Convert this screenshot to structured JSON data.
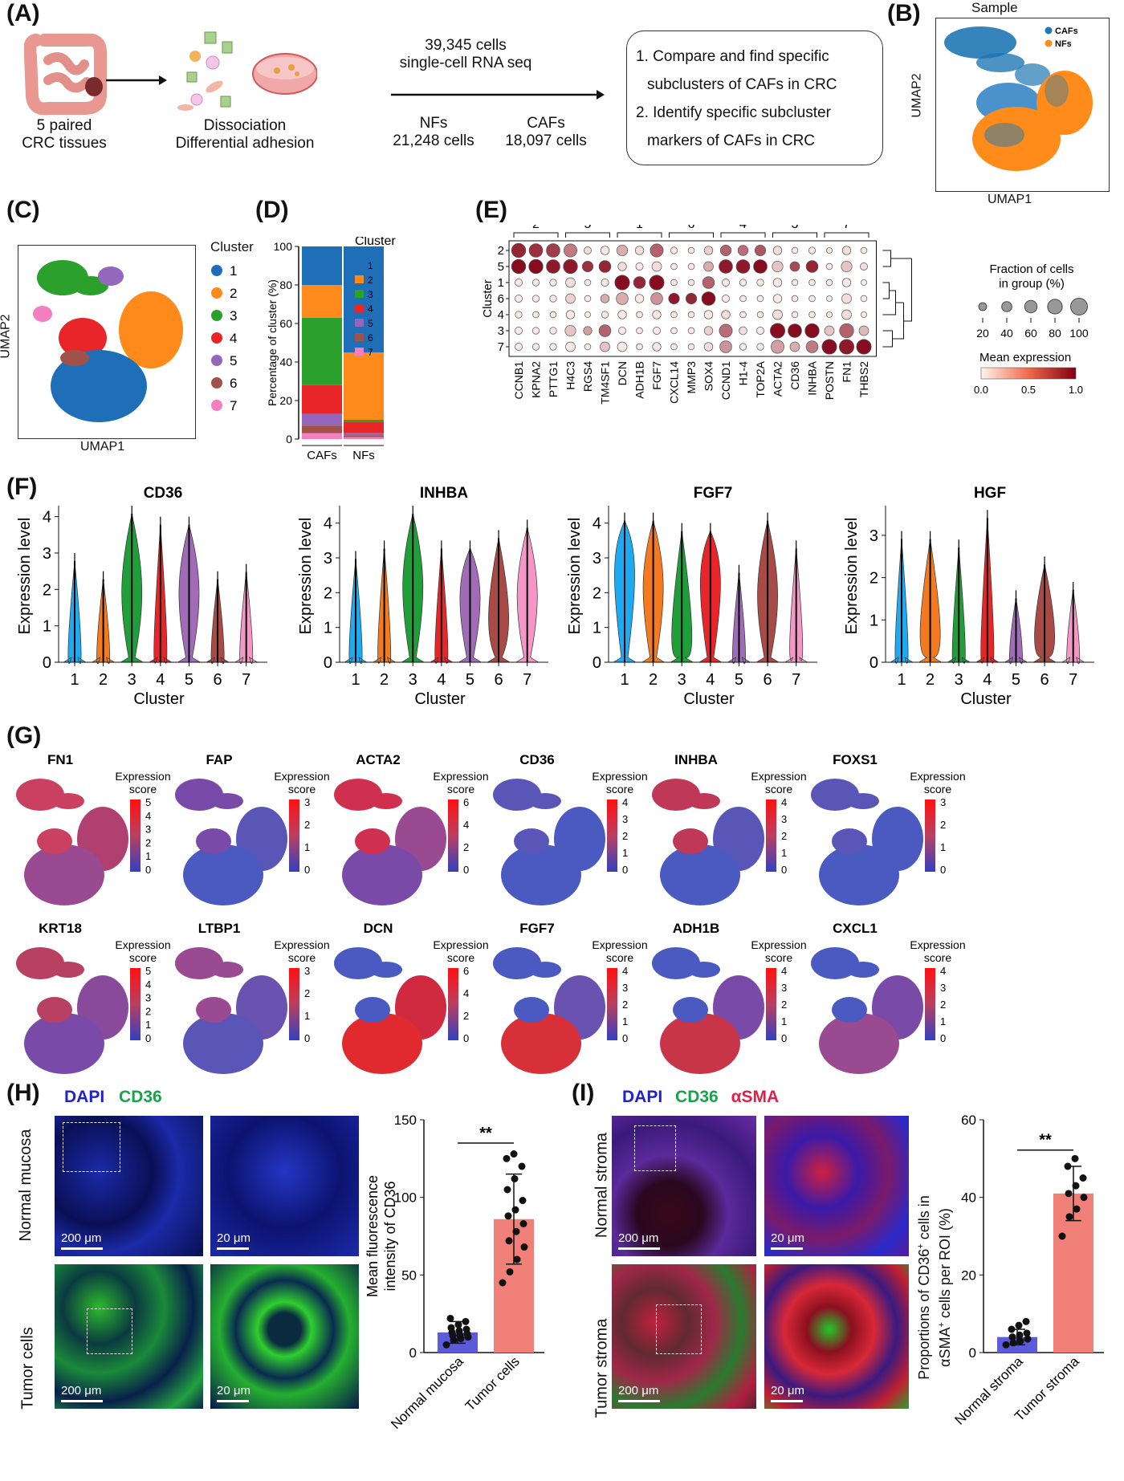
{
  "panels": {
    "A": "(A)",
    "B": "(B)",
    "C": "(C)",
    "D": "(D)",
    "E": "(E)",
    "F": "(F)",
    "G": "(G)",
    "H": "(H)",
    "I": "(I)"
  },
  "panelA": {
    "tissue_line1": "5 paired",
    "tissue_line2": "CRC tissues",
    "dissoc_line1": "Dissociation",
    "dissoc_line2": "Differential adhesion",
    "cells_line1": "39,345 cells",
    "cells_line2": "single-cell RNA seq",
    "nfs_line1": "NFs",
    "nfs_line2": "21,248 cells",
    "cafs_line1": "CAFs",
    "cafs_line2": "18,097 cells",
    "goal1_line1": "1. Compare and find specific",
    "goal1_line2": "subclusters of CAFs in CRC",
    "goal2_line1": "2. Identify specific subcluster",
    "goal2_line2": "markers of CAFs in CRC"
  },
  "panelB": {
    "title": "Sample",
    "xlabel": "UMAP1",
    "ylabel": "UMAP2",
    "legend": [
      {
        "label": "CAFs",
        "color": "#1f77b4"
      },
      {
        "label": "NFs",
        "color": "#ff8c1a"
      }
    ]
  },
  "panelC": {
    "xlabel": "UMAP1",
    "ylabel": "UMAP2",
    "legend_title": "Cluster",
    "clusters": [
      {
        "label": "1",
        "color": "#1f6fb8"
      },
      {
        "label": "2",
        "color": "#ff8a1c"
      },
      {
        "label": "3",
        "color": "#2ca02c"
      },
      {
        "label": "4",
        "color": "#e8262a"
      },
      {
        "label": "5",
        "color": "#9467bd"
      },
      {
        "label": "6",
        "color": "#a0524a"
      },
      {
        "label": "7",
        "color": "#f37fbf"
      }
    ]
  },
  "chart_data": [
    {
      "type": "bar",
      "id": "D",
      "stacked": true,
      "categories": [
        "CAFs",
        "NFs"
      ],
      "ylabel": "Percentage of cluster (%)",
      "ylim": [
        0,
        100
      ],
      "yticks": [
        "0",
        "20",
        "40",
        "60",
        "80",
        "100"
      ],
      "legend_title": "Cluster",
      "series": [
        {
          "name": "1",
          "color": "#1f6fb8",
          "values": [
            20,
            55
          ]
        },
        {
          "name": "2",
          "color": "#ff8a1c",
          "values": [
            17,
            35
          ]
        },
        {
          "name": "3",
          "color": "#2ca02c",
          "values": [
            35,
            1
          ]
        },
        {
          "name": "4",
          "color": "#e8262a",
          "values": [
            15,
            6
          ]
        },
        {
          "name": "5",
          "color": "#9467bd",
          "values": [
            6,
            1
          ]
        },
        {
          "name": "6",
          "color": "#a0524a",
          "values": [
            4,
            1
          ]
        },
        {
          "name": "7",
          "color": "#f37fbf",
          "values": [
            3,
            1
          ]
        }
      ]
    },
    {
      "type": "heatmap",
      "id": "E",
      "ylabel": "Cluster",
      "rows": [
        "2",
        "5",
        "1",
        "6",
        "4",
        "3",
        "7"
      ],
      "columns": [
        "CCNB1",
        "KPNA2",
        "PTTG1",
        "H4C3",
        "RGS4",
        "TM4SF1",
        "DCN",
        "ADH1B",
        "FGF7",
        "CXCL14",
        "MMP3",
        "SOX4",
        "CCND1",
        "H1-4",
        "TOP2A",
        "ACTA2",
        "CD36",
        "INHBA",
        "POSTN",
        "FN1",
        "THBS2"
      ],
      "groups": [
        {
          "label": "2",
          "start": 0,
          "end": 2
        },
        {
          "label": "5",
          "start": 3,
          "end": 5
        },
        {
          "label": "1",
          "start": 6,
          "end": 8
        },
        {
          "label": "6",
          "start": 9,
          "end": 11
        },
        {
          "label": "4",
          "start": 12,
          "end": 14
        },
        {
          "label": "3",
          "start": 15,
          "end": 17
        },
        {
          "label": "7",
          "start": 18,
          "end": 20
        }
      ],
      "mean_expression": [
        [
          0.85,
          0.8,
          0.75,
          0.5,
          0.1,
          0.05,
          0.3,
          0.1,
          0.6,
          0.05,
          0.05,
          0.15,
          0.6,
          0.55,
          0.65,
          0.1,
          0.05,
          0.05,
          0.05,
          0.1,
          0.05
        ],
        [
          0.95,
          0.95,
          0.9,
          0.9,
          0.8,
          0.85,
          0.1,
          0.05,
          0.1,
          0.05,
          0.05,
          0.3,
          0.9,
          0.9,
          0.95,
          0.2,
          0.7,
          0.85,
          0.05,
          0.2,
          0.1
        ],
        [
          0.05,
          0.05,
          0.05,
          0.1,
          0.05,
          0.05,
          0.95,
          0.85,
          0.95,
          0.05,
          0.05,
          0.6,
          0.05,
          0.05,
          0.05,
          0.05,
          0.05,
          0.05,
          0.05,
          0.05,
          0.05
        ],
        [
          0.05,
          0.05,
          0.05,
          0.15,
          0.05,
          0.3,
          0.3,
          0.05,
          0.4,
          0.9,
          0.85,
          0.95,
          0.05,
          0.05,
          0.05,
          0.05,
          0.05,
          0.05,
          0.05,
          0.1,
          0.05
        ],
        [
          0.05,
          0.05,
          0.05,
          0.05,
          0.05,
          0.05,
          0.05,
          0.05,
          0.05,
          0.05,
          0.05,
          0.05,
          0.1,
          0.05,
          0.05,
          0.1,
          0.05,
          0.05,
          0.05,
          0.1,
          0.05
        ],
        [
          0.05,
          0.05,
          0.05,
          0.2,
          0.35,
          0.6,
          0.05,
          0.05,
          0.05,
          0.05,
          0.05,
          0.15,
          0.55,
          0.1,
          0.05,
          0.95,
          0.95,
          0.95,
          0.2,
          0.6,
          0.25
        ],
        [
          0.05,
          0.05,
          0.05,
          0.05,
          0.05,
          0.2,
          0.05,
          0.05,
          0.05,
          0.05,
          0.05,
          0.1,
          0.4,
          0.05,
          0.05,
          0.35,
          0.3,
          0.5,
          0.95,
          0.9,
          0.95
        ]
      ],
      "fraction_pct": [
        [
          90,
          85,
          85,
          80,
          30,
          40,
          60,
          40,
          80,
          25,
          20,
          40,
          60,
          55,
          60,
          40,
          20,
          25,
          15,
          40,
          20
        ],
        [
          90,
          90,
          85,
          90,
          60,
          70,
          40,
          30,
          50,
          20,
          20,
          50,
          85,
          85,
          85,
          60,
          50,
          70,
          20,
          60,
          30
        ],
        [
          30,
          25,
          25,
          50,
          20,
          30,
          95,
          70,
          95,
          20,
          20,
          70,
          30,
          25,
          25,
          40,
          20,
          20,
          20,
          40,
          15
        ],
        [
          30,
          25,
          25,
          50,
          20,
          40,
          70,
          40,
          70,
          60,
          60,
          85,
          30,
          20,
          20,
          40,
          20,
          20,
          15,
          50,
          20
        ],
        [
          25,
          20,
          20,
          40,
          15,
          25,
          40,
          20,
          40,
          20,
          20,
          40,
          40,
          20,
          20,
          50,
          20,
          20,
          15,
          50,
          15
        ],
        [
          30,
          25,
          25,
          60,
          40,
          70,
          30,
          20,
          30,
          20,
          20,
          40,
          80,
          35,
          30,
          95,
          85,
          90,
          50,
          90,
          50
        ],
        [
          30,
          25,
          25,
          50,
          20,
          50,
          50,
          20,
          40,
          20,
          20,
          40,
          70,
          25,
          25,
          80,
          50,
          70,
          95,
          95,
          95
        ]
      ],
      "size_legend_title": "Fraction of cells in group (%)",
      "size_legend": [
        20,
        40,
        60,
        80,
        100
      ],
      "color_legend_title": "Mean expression",
      "color_ticks": [
        "0.0",
        "0.5",
        "1.0"
      ]
    },
    {
      "type": "violin",
      "id": "F",
      "panels": [
        {
          "gene": "CD36",
          "ylim": [
            0,
            4.3
          ],
          "yticks": [
            "0",
            "1",
            "2",
            "3",
            "4"
          ],
          "medians": [
            0,
            0,
            2,
            0,
            2,
            0,
            0
          ],
          "max": [
            3,
            2.5,
            4.3,
            4,
            4,
            2.5,
            2.7
          ]
        },
        {
          "gene": "INHBA",
          "ylim": [
            0,
            4.5
          ],
          "yticks": [
            "0",
            "1",
            "2",
            "3",
            "4"
          ],
          "medians": [
            0,
            0,
            2.3,
            0,
            2,
            1.2,
            2
          ],
          "max": [
            3.2,
            3.5,
            4.5,
            3.5,
            3.5,
            3.8,
            4.1
          ]
        },
        {
          "gene": "FGF7",
          "ylim": [
            0,
            4.5
          ],
          "yticks": [
            "0",
            "1",
            "2",
            "3",
            "4"
          ],
          "medians": [
            2.8,
            2.3,
            0.5,
            2.5,
            0,
            2,
            0.2
          ],
          "max": [
            4.3,
            4.3,
            4,
            4,
            2.8,
            4.3,
            3.5
          ]
        },
        {
          "gene": "HGF",
          "ylim": [
            0,
            3.7
          ],
          "yticks": [
            "0",
            "1",
            "2",
            "3"
          ],
          "medians": [
            0,
            0.5,
            0,
            0,
            0,
            0.5,
            0
          ],
          "max": [
            3.1,
            3.1,
            2.9,
            3.6,
            1.7,
            2.5,
            1.9
          ]
        }
      ],
      "categories": [
        "1",
        "2",
        "3",
        "4",
        "5",
        "6",
        "7"
      ],
      "colors": [
        "#1eaaf1",
        "#f47a22",
        "#1f9e3a",
        "#e8262a",
        "#a16bb8",
        "#a84a46",
        "#f497c6"
      ],
      "xlabel": "Cluster",
      "ylabel": "Expression level"
    },
    {
      "type": "bar",
      "id": "H",
      "categories": [
        "Normal mucosa",
        "Tumor cells"
      ],
      "values": [
        13,
        86
      ],
      "errors": [
        7,
        29
      ],
      "points": [
        [
          5,
          8,
          9,
          10,
          11,
          11,
          12,
          13,
          14,
          15,
          16,
          18,
          20,
          22
        ],
        [
          45,
          52,
          60,
          68,
          72,
          78,
          83,
          88,
          92,
          98,
          105,
          112,
          120,
          125,
          128
        ]
      ],
      "colors": [
        "#5b5bdc",
        "#f08078"
      ],
      "ylabel": "Mean fluorescence intensity of CD36",
      "ylim": [
        0,
        150
      ],
      "yticks": [
        "0",
        "50",
        "100",
        "150"
      ],
      "significance": "**"
    },
    {
      "type": "bar",
      "id": "I",
      "categories": [
        "Normal stroma",
        "Tumor stroma"
      ],
      "values": [
        4,
        41
      ],
      "errors": [
        2,
        7
      ],
      "points": [
        [
          2,
          2.5,
          3,
          3.5,
          4,
          4.5,
          5,
          6,
          7,
          8
        ],
        [
          30,
          35,
          37,
          40,
          41,
          43,
          45,
          48,
          50
        ]
      ],
      "colors": [
        "#5b5bdc",
        "#f08078"
      ],
      "ylabel": "Proportions of CD36+ cells in αSMA+ cells per ROI (%)",
      "ylim": [
        0,
        60
      ],
      "yticks": [
        "0",
        "20",
        "40",
        "60"
      ],
      "significance": "**"
    }
  ],
  "panelG": {
    "legend_title_1": "Expression",
    "legend_title_2": "score",
    "genes": [
      {
        "name": "FN1",
        "ticks": [
          "5",
          "4",
          "3",
          "2",
          "1",
          "0"
        ]
      },
      {
        "name": "FAP",
        "ticks": [
          "3",
          "2",
          "1",
          "0"
        ]
      },
      {
        "name": "ACTA2",
        "ticks": [
          "6",
          "4",
          "2",
          "0"
        ]
      },
      {
        "name": "CD36",
        "ticks": [
          "4",
          "3",
          "2",
          "1",
          "0"
        ]
      },
      {
        "name": "INHBA",
        "ticks": [
          "4",
          "3",
          "2",
          "1",
          "0"
        ]
      },
      {
        "name": "FOXS1",
        "ticks": [
          "3",
          "2",
          "1",
          "0"
        ]
      },
      {
        "name": "KRT18",
        "ticks": [
          "5",
          "4",
          "3",
          "2",
          "1",
          "0"
        ]
      },
      {
        "name": "LTBP1",
        "ticks": [
          "3",
          "2",
          "1",
          "0"
        ]
      },
      {
        "name": "DCN",
        "ticks": [
          "6",
          "4",
          "2",
          "0"
        ]
      },
      {
        "name": "FGF7",
        "ticks": [
          "4",
          "3",
          "2",
          "1",
          "0"
        ]
      },
      {
        "name": "ADH1B",
        "ticks": [
          "4",
          "3",
          "2",
          "1",
          "0"
        ]
      },
      {
        "name": "CXCL1",
        "ticks": [
          "4",
          "3",
          "2",
          "1",
          "0"
        ]
      }
    ]
  },
  "panelH": {
    "stain1": "DAPI",
    "stain2": "CD36",
    "row1": "Normal mucosa",
    "row2": "Tumor cells",
    "scale_big": "200 μm",
    "scale_small": "20 μm"
  },
  "panelI": {
    "stain1": "DAPI",
    "stain2": "CD36",
    "stain3": "αSMA",
    "row1": "Normal stroma",
    "row2": "Tumor stroma",
    "scale_big": "200 μm",
    "scale_small": "20 μm",
    "ylabel_line1": "Proportions of CD36",
    "ylabel_sup1": "+",
    "ylabel_mid": " cells in",
    "ylabel_line2": "αSMA",
    "ylabel_sup2": "+",
    "ylabel_end": " cells per ROI (%)"
  }
}
